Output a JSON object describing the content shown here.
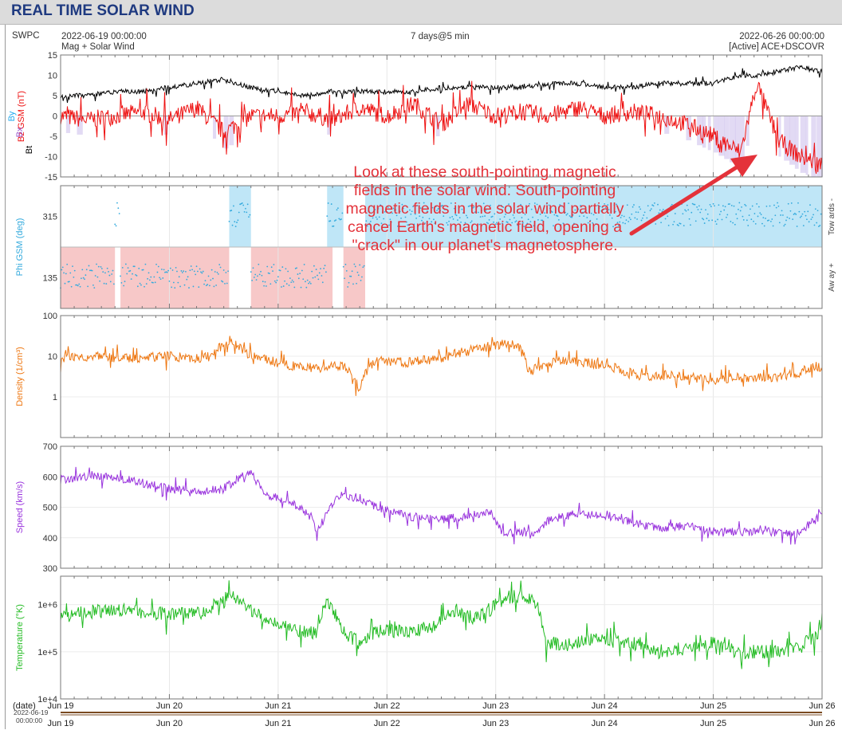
{
  "header": {
    "title": "REAL TIME SOLAR WIND"
  },
  "meta": {
    "source": "SWPC",
    "start": "2022-06-19 00:00:00",
    "subtitle": "Mag + Solar Wind",
    "span": "7 days@5 min",
    "end": "2022-06-26 00:00:00",
    "spacecraft": "[Active] ACE+DSCOVR"
  },
  "annotation": {
    "text": "Look at these south-pointing magnetic fields in the solar wind. South-pointing magnetic fields in the solar wind partially cancel Earth's magnetic field, opening a \"crack\" in our planet's magnetosphere."
  },
  "footer": {
    "date_label": "(date)",
    "date_stamp_1": "2022-06-19",
    "date_stamp_2": "00:00:00"
  },
  "colors": {
    "bt": "#000000",
    "bz": "#ee1111",
    "bx": "#9955cc",
    "by": "#22aaee",
    "phi": "#33aadd",
    "phi_toward_band": "#bfe6f7",
    "phi_away_band": "#f7c8c8",
    "density": "#ee7711",
    "speed": "#9933dd",
    "temperature": "#22bb22",
    "southward_shading": "#d8cdf0",
    "annotation": "#e4323a"
  },
  "chart_data": [
    {
      "type": "line",
      "panel": "mag",
      "xlabels": [
        "Jun 19",
        "Jun 20",
        "Jun 21",
        "Jun 22",
        "Jun 23",
        "Jun 24",
        "Jun 25",
        "Jun 26"
      ],
      "ylabel_parts": [
        "Bt",
        "Bz GSM (nT)",
        "Bx",
        "By"
      ],
      "ylim": [
        -15,
        15
      ],
      "yticks": [
        15,
        10,
        5,
        0,
        -5,
        -10,
        -15
      ],
      "x_days": [
        0,
        0.25,
        0.5,
        0.75,
        1,
        1.25,
        1.5,
        1.75,
        2,
        2.25,
        2.5,
        2.75,
        3,
        3.25,
        3.5,
        3.75,
        4,
        4.25,
        4.5,
        4.75,
        5,
        5.25,
        5.5,
        5.75,
        6,
        6.25,
        6.4,
        6.6,
        6.8,
        7
      ],
      "series": [
        {
          "name": "Bt",
          "values": [
            5,
            5,
            6,
            6,
            7,
            8,
            9,
            7,
            6,
            5,
            6,
            6,
            6,
            6,
            7,
            7,
            7,
            7,
            8,
            8,
            7,
            7,
            8,
            8,
            8,
            10,
            10,
            11,
            12,
            11
          ]
        },
        {
          "name": "Bz",
          "values": [
            0,
            -1,
            0,
            1,
            -1,
            2,
            -4,
            0,
            0,
            1,
            -1,
            2,
            0,
            3,
            -2,
            3,
            0,
            1,
            0,
            2,
            0,
            1,
            0,
            -2,
            -5,
            -9,
            8,
            -6,
            -10,
            -12
          ]
        }
      ]
    },
    {
      "type": "scatter",
      "panel": "phi",
      "ylabel": "Phi GSM (deg)",
      "yticks": [
        315,
        135
      ],
      "ylim": [
        45,
        405
      ],
      "side_labels": [
        "Tow ards -",
        "Aw ay +"
      ],
      "bands": [
        {
          "from": 0,
          "to": 0.5,
          "side": "away"
        },
        {
          "from": 0.55,
          "to": 1.55,
          "side": "away"
        },
        {
          "from": 1.55,
          "to": 1.75,
          "side": "toward"
        },
        {
          "from": 1.75,
          "to": 2.5,
          "side": "away"
        },
        {
          "from": 2.45,
          "to": 2.6,
          "side": "toward"
        },
        {
          "from": 2.6,
          "to": 2.8,
          "side": "away"
        },
        {
          "from": 2.8,
          "to": 7,
          "side": "toward"
        }
      ]
    },
    {
      "type": "line",
      "panel": "density",
      "ylabel": "Density (1/cm³)",
      "scale": "log",
      "ylim": [
        0.1,
        100
      ],
      "yticks": [
        100,
        10,
        1
      ],
      "x_days": [
        0,
        0.25,
        0.5,
        0.75,
        1,
        1.25,
        1.4,
        1.55,
        1.7,
        1.9,
        2.1,
        2.35,
        2.6,
        2.75,
        2.9,
        3.2,
        3.5,
        3.65,
        3.85,
        4.05,
        4.2,
        4.3,
        4.45,
        4.6,
        4.8,
        5,
        5.2,
        5.4,
        5.6,
        5.8,
        6,
        6.2,
        6.4,
        6.6,
        6.8,
        6.95,
        7
      ],
      "values": [
        9,
        10,
        9,
        9,
        10,
        9,
        10,
        25,
        12,
        8,
        6,
        5,
        6,
        1.2,
        8,
        7,
        9,
        12,
        15,
        20,
        18,
        4,
        6,
        8,
        7,
        6,
        4,
        3,
        3.5,
        3,
        2.5,
        3,
        3,
        3,
        4,
        6,
        5
      ]
    },
    {
      "type": "line",
      "panel": "speed",
      "ylabel": "Speed (km/s)",
      "ylim": [
        300,
        700
      ],
      "yticks": [
        700,
        600,
        500,
        400,
        300
      ],
      "x_days": [
        0,
        0.25,
        0.5,
        0.75,
        1,
        1.25,
        1.5,
        1.65,
        1.75,
        1.9,
        2.1,
        2.3,
        2.35,
        2.55,
        2.75,
        2.9,
        3.2,
        3.5,
        3.75,
        3.95,
        4.05,
        4.35,
        4.5,
        4.75,
        5,
        5.25,
        5.5,
        5.75,
        6,
        6.25,
        6.5,
        6.75,
        6.95,
        7
      ],
      "values": [
        590,
        600,
        600,
        580,
        560,
        550,
        560,
        600,
        610,
        540,
        520,
        470,
        420,
        540,
        530,
        500,
        470,
        460,
        470,
        490,
        420,
        410,
        460,
        480,
        470,
        450,
        430,
        440,
        420,
        420,
        420,
        410,
        460,
        490
      ]
    },
    {
      "type": "line",
      "panel": "temperature",
      "ylabel": "Temperature (°K)",
      "scale": "log",
      "ylim": [
        10000,
        4000000
      ],
      "yticks": [
        "1e+6",
        "1e+5",
        "1e+4"
      ],
      "x_days": [
        0,
        0.25,
        0.5,
        0.75,
        1,
        1.2,
        1.35,
        1.55,
        1.75,
        1.95,
        2.1,
        2.35,
        2.45,
        2.6,
        2.75,
        2.95,
        3.2,
        3.45,
        3.6,
        3.8,
        3.95,
        4.15,
        4.35,
        4.45,
        4.7,
        5,
        5.25,
        5.5,
        5.75,
        6,
        6.25,
        6.5,
        6.75,
        6.95,
        7
      ],
      "values": [
        650000,
        700000,
        750000,
        700000,
        600000,
        650000,
        700000,
        1500000,
        700000,
        400000,
        300000,
        250000,
        1000000,
        250000,
        150000,
        300000,
        250000,
        350000,
        700000,
        500000,
        800000,
        1500000,
        1200000,
        150000,
        150000,
        200000,
        150000,
        100000,
        120000,
        150000,
        90000,
        100000,
        110000,
        200000,
        500000
      ]
    }
  ]
}
